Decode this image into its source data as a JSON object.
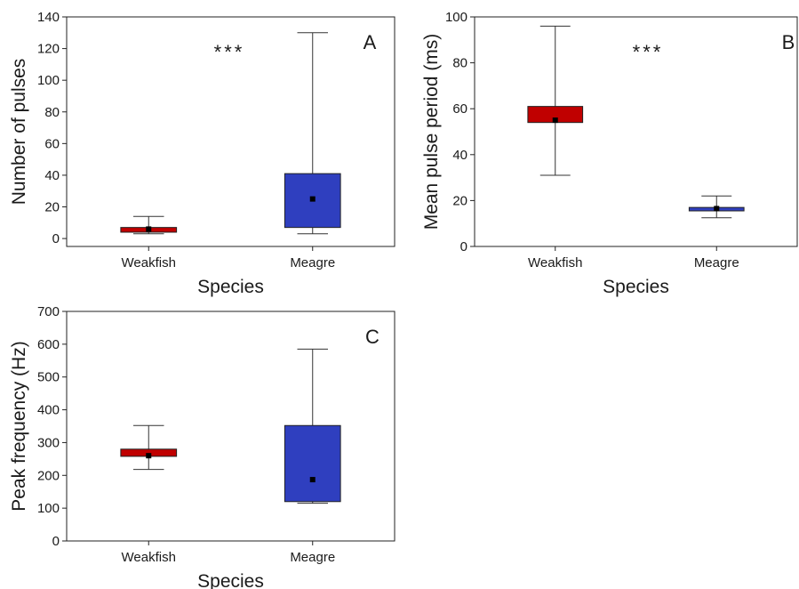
{
  "chart_data": [
    {
      "type": "box",
      "panel_label": "A",
      "significance": "***",
      "xlabel": "Species",
      "ylabel": "Number of pulses",
      "categories": [
        "Weakfish",
        "Meagre"
      ],
      "ylim": [
        -5,
        140
      ],
      "yticks": [
        0,
        20,
        40,
        60,
        80,
        100,
        120,
        140
      ],
      "boxes": [
        {
          "category": "Weakfish",
          "whisker_low": 3,
          "q1": 4,
          "q3": 7,
          "whisker_high": 14,
          "mean": 6,
          "color": "#c00000"
        },
        {
          "category": "Meagre",
          "whisker_low": 3,
          "q1": 7,
          "q3": 41,
          "whisker_high": 130,
          "mean": 25,
          "color": "#2f3fbf"
        }
      ]
    },
    {
      "type": "box",
      "panel_label": "B",
      "significance": "***",
      "xlabel": "Species",
      "ylabel": "Mean pulse period (ms)",
      "categories": [
        "Weakfish",
        "Meagre"
      ],
      "ylim": [
        0,
        100
      ],
      "yticks": [
        0,
        20,
        40,
        60,
        80,
        100
      ],
      "boxes": [
        {
          "category": "Weakfish",
          "whisker_low": 31,
          "q1": 54,
          "q3": 61,
          "whisker_high": 96,
          "mean": 55,
          "color": "#c00000"
        },
        {
          "category": "Meagre",
          "whisker_low": 12.5,
          "q1": 15.5,
          "q3": 17,
          "whisker_high": 22,
          "mean": 16.5,
          "color": "#2f3fbf"
        }
      ]
    },
    {
      "type": "box",
      "panel_label": "C",
      "significance": "",
      "xlabel": "Species",
      "ylabel": "Peak frequency (Hz)",
      "categories": [
        "Weakfish",
        "Meagre"
      ],
      "ylim": [
        0,
        700
      ],
      "yticks": [
        0,
        100,
        200,
        300,
        400,
        500,
        600,
        700
      ],
      "boxes": [
        {
          "category": "Weakfish",
          "whisker_low": 218,
          "q1": 258,
          "q3": 280,
          "whisker_high": 352,
          "mean": 260,
          "color": "#c00000"
        },
        {
          "category": "Meagre",
          "whisker_low": 115,
          "q1": 120,
          "q3": 352,
          "whisker_high": 585,
          "mean": 187,
          "color": "#2f3fbf"
        }
      ]
    }
  ]
}
